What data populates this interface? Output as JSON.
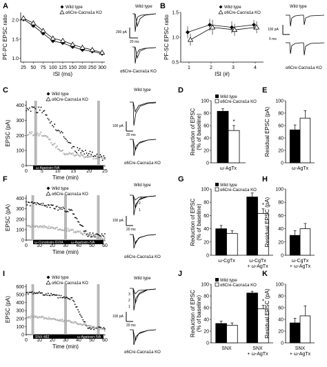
{
  "panels": {
    "A": {
      "label": "A"
    },
    "B": {
      "label": "B"
    },
    "C": {
      "label": "C"
    },
    "D": {
      "label": "D"
    },
    "E": {
      "label": "E"
    },
    "F": {
      "label": "F"
    },
    "G": {
      "label": "G"
    },
    "H": {
      "label": "H"
    },
    "I": {
      "label": "I"
    },
    "J": {
      "label": "J"
    },
    "K": {
      "label": "K"
    }
  },
  "legend": {
    "wt": "Wild type",
    "ko": "α6Cre-Cacna1a KO"
  },
  "traces": {
    "wild_type": "Wild type",
    "ko": "α6Cre-Cacna1a KO",
    "scale_a_amp": "200 pA",
    "scale_a_time": "20 ms",
    "scale_b_amp": "100 pA",
    "scale_b_time": "5 ms",
    "scale_c_amp": "100 pA",
    "scale_c_time": "20 ms",
    "scale_f_amp": "100 pA",
    "scale_f_time": "20 ms",
    "scale_i_amp": "100 pA",
    "scale_i_time": "20 ms",
    "num1": "1",
    "num2": "2",
    "num3": "3"
  },
  "drug_bars": {
    "C": "ω-Agatoxin-IVA",
    "F1": "ω-Conotoxin-GVIA",
    "F2": "ω-Agatoxin-IVA",
    "I1": "SNX-482",
    "I2": "ω-Agatoxin-IVA"
  },
  "star": "*",
  "chart_data": [
    {
      "panel": "A",
      "type": "line",
      "xlabel": "ISI (ms)",
      "ylabel": "PF-PC EPSC ratio",
      "x": [
        25,
        50,
        75,
        100,
        125,
        150,
        200,
        250,
        300
      ],
      "xticks": [
        "25",
        "50",
        "75",
        "100",
        "125",
        "150",
        "200",
        "250",
        "300"
      ],
      "yticks": [
        "1.0",
        "1.5",
        "2.0"
      ],
      "ylim": [
        0.9,
        2.2
      ],
      "series": [
        {
          "name": "Wild type",
          "marker": "filled-diamond",
          "values": [
            2.02,
            1.85,
            1.65,
            1.45,
            1.4,
            1.3,
            1.22,
            1.18,
            1.12
          ]
        },
        {
          "name": "α6Cre-Cacna1a KO",
          "marker": "open-triangle",
          "values": [
            2.05,
            1.92,
            1.72,
            1.52,
            1.46,
            1.36,
            1.28,
            1.22,
            1.15
          ]
        }
      ]
    },
    {
      "panel": "B",
      "type": "line",
      "xlabel": "ISI (#)",
      "ylabel": "PF-SC EPSC ratio",
      "x": [
        1,
        2,
        3,
        4
      ],
      "xticks": [
        "1",
        "2",
        "3",
        "4"
      ],
      "yticks": [
        "0.5",
        "1.0",
        "1.5"
      ],
      "ylim": [
        0.5,
        1.5
      ],
      "series": [
        {
          "name": "Wild type",
          "marker": "filled-diamond",
          "values": [
            1.1,
            1.25,
            1.2,
            1.25
          ],
          "err": [
            0.12,
            0.12,
            0.12,
            0.1
          ]
        },
        {
          "name": "α6Cre-Cacna1a KO",
          "marker": "open-triangle",
          "values": [
            0.95,
            1.2,
            1.15,
            1.2
          ],
          "err": [
            0.12,
            0.15,
            0.12,
            0.12
          ]
        }
      ]
    },
    {
      "panel": "C",
      "type": "scatter",
      "xlabel": "Time (min)",
      "ylabel": "EPSC (pA)",
      "xticks": [
        "0",
        "5",
        "10",
        "15",
        "20",
        "25"
      ],
      "xlim": [
        0,
        25
      ],
      "yticks": [
        "0",
        "100",
        "200",
        "300",
        "400"
      ],
      "ylim": [
        0,
        430
      ]
    },
    {
      "panel": "D",
      "type": "bar",
      "ylabel": "Reduction of EPSC (% of baseline)",
      "categories": [
        "ω-AgTx"
      ],
      "yticks": [
        "0",
        "20",
        "40",
        "60",
        "80",
        "100"
      ],
      "ylim": [
        0,
        100
      ],
      "series": [
        {
          "name": "Wild type",
          "values": [
            83
          ],
          "err": [
            4
          ]
        },
        {
          "name": "α6Cre-Cacna1a KO",
          "values": [
            52
          ],
          "err": [
            8
          ]
        }
      ]
    },
    {
      "panel": "E",
      "type": "bar",
      "ylabel": "Residual EPSC (pA)",
      "categories": [
        "ω-AgTx"
      ],
      "yticks": [
        "0",
        "20",
        "40",
        "60",
        "80",
        "100"
      ],
      "ylim": [
        0,
        100
      ],
      "series": [
        {
          "name": "Wild type",
          "values": [
            53
          ],
          "err": [
            8
          ]
        },
        {
          "name": "α6Cre-Cacna1a KO",
          "values": [
            72
          ],
          "err": [
            12
          ]
        }
      ]
    },
    {
      "panel": "F",
      "type": "scatter",
      "xlabel": "Time (min)",
      "ylabel": "EPSC (pA)",
      "xticks": [
        "0",
        "10",
        "20",
        "30",
        "40",
        "50",
        "60"
      ],
      "xlim": [
        0,
        60
      ],
      "yticks": [
        "0",
        "100",
        "200",
        "300",
        "400"
      ],
      "ylim": [
        0,
        430
      ]
    },
    {
      "panel": "G",
      "type": "bar",
      "ylabel": "Reduction of EPSC (% of baseline)",
      "categories": [
        "ω-CgTx",
        "ω-CgTx + ω-AgTx"
      ],
      "yticks": [
        "0",
        "20",
        "40",
        "60",
        "80",
        "100"
      ],
      "ylim": [
        0,
        100
      ],
      "series": [
        {
          "name": "Wild type",
          "values": [
            40,
            88
          ],
          "err": [
            5,
            6
          ]
        },
        {
          "name": "α6Cre-Cacna1a KO",
          "values": [
            33,
            63
          ],
          "err": [
            4,
            7
          ]
        }
      ]
    },
    {
      "panel": "H",
      "type": "bar",
      "ylabel": "Residual EPSC (pA)",
      "categories": [
        "ω-CgTx + ω-AgTx"
      ],
      "yticks": [
        "0",
        "20",
        "40",
        "60",
        "80",
        "100"
      ],
      "ylim": [
        0,
        100
      ],
      "series": [
        {
          "name": "Wild type",
          "values": [
            30
          ],
          "err": [
            7
          ]
        },
        {
          "name": "α6Cre-Cacna1a KO",
          "values": [
            40
          ],
          "err": [
            8
          ]
        }
      ]
    },
    {
      "panel": "I",
      "type": "scatter",
      "xlabel": "Time (min)",
      "ylabel": "EPSC (pA)",
      "xticks": [
        "0",
        "10",
        "20",
        "30",
        "40",
        "50",
        "60"
      ],
      "xlim": [
        0,
        60
      ],
      "yticks": [
        "0",
        "100",
        "200",
        "300",
        "400",
        "500",
        "600"
      ],
      "ylim": [
        0,
        630
      ]
    },
    {
      "panel": "J",
      "type": "bar",
      "ylabel": "Reduction of EPSC (% of baseline)",
      "categories": [
        "SNX",
        "SNX + ω-AgTx"
      ],
      "yticks": [
        "0",
        "20",
        "40",
        "60",
        "80",
        "100"
      ],
      "ylim": [
        0,
        100
      ],
      "series": [
        {
          "name": "Wild type",
          "values": [
            33,
            85
          ],
          "err": [
            4,
            3
          ]
        },
        {
          "name": "α6Cre-Cacna1a KO",
          "values": [
            30,
            58
          ],
          "err": [
            4,
            6
          ]
        }
      ]
    },
    {
      "panel": "K",
      "type": "bar",
      "ylabel": "Residual EPSC (pA)",
      "categories": [
        "SNX + ω-AgTx"
      ],
      "yticks": [
        "0",
        "20",
        "40",
        "60",
        "80",
        "100"
      ],
      "ylim": [
        0,
        100
      ],
      "series": [
        {
          "name": "Wild type",
          "values": [
            34
          ],
          "err": [
            8
          ]
        },
        {
          "name": "α6Cre-Cacna1a KO",
          "values": [
            46
          ],
          "err": [
            17
          ]
        }
      ]
    }
  ]
}
